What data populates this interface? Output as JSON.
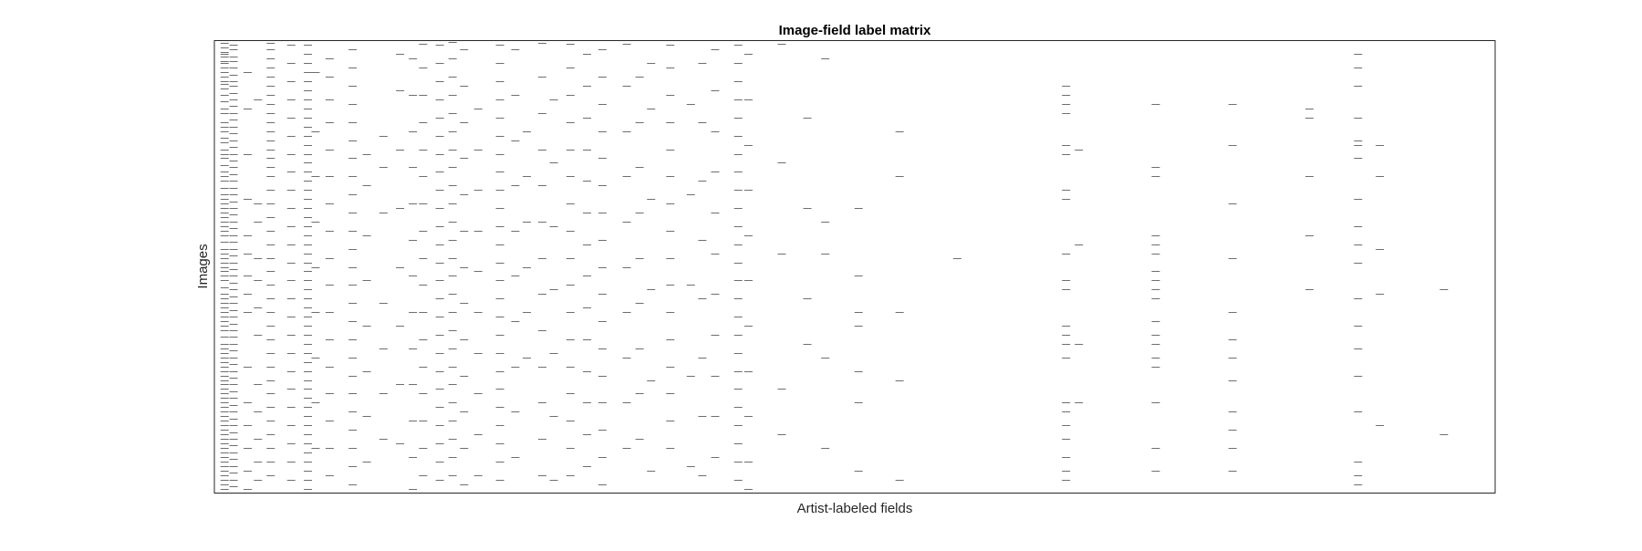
{
  "chart_data": {
    "type": "heatmap",
    "subtype": "binary-spy-matrix",
    "title": "Image-field label matrix",
    "xlabel": "Artist-labeled fields",
    "ylabel": "Images",
    "xlim": [
      0,
      100
    ],
    "ylim": [
      0,
      100
    ],
    "ticks_visible": false,
    "grid": false,
    "colors": {
      "mark": "#6e6e6e",
      "frame": "#262626",
      "background": "#ffffff"
    },
    "columns": [
      {
        "x": 0.8,
        "y": [
          0.5,
          1.5,
          2.5,
          3,
          3.5,
          4.5,
          5,
          6,
          7,
          8,
          9,
          9.5,
          10.5,
          12,
          13.5,
          15,
          16,
          18,
          19,
          20,
          21.5,
          22.5,
          24,
          25,
          26,
          27.5,
          29,
          30,
          31,
          32.5,
          34,
          35,
          36,
          37,
          38,
          39,
          40,
          41,
          42,
          43,
          44.5,
          46,
          47,
          48,
          49,
          50,
          51,
          52,
          53,
          54.5,
          56,
          57,
          58,
          59,
          60,
          61,
          62,
          63,
          64,
          65.5,
          67,
          68,
          69,
          70,
          71,
          72,
          73,
          74,
          75,
          76,
          77,
          78,
          79,
          80,
          81,
          82,
          83,
          84,
          85,
          86,
          87,
          88,
          89,
          90,
          91,
          92,
          93,
          94,
          95,
          96,
          97,
          98,
          99
        ]
      },
      {
        "x": 1.5,
        "y": [
          1,
          2,
          3.5,
          4.5,
          6,
          7.5,
          9,
          10,
          11.5,
          13,
          14.5,
          16,
          17.5,
          19,
          20.5,
          22,
          23.5,
          25,
          26.5,
          28,
          29.5,
          31,
          32.5,
          34,
          35.5,
          37,
          38.5,
          40,
          41.5,
          43,
          44.5,
          46,
          47.5,
          49,
          50.5,
          52,
          53.5,
          55,
          56.5,
          58,
          59.5,
          61,
          62.5,
          64,
          65.5,
          67,
          68.5,
          70,
          71.5,
          73,
          74.5,
          76,
          77.5,
          79,
          80.5,
          82,
          83.5,
          85,
          86.5,
          88,
          89.5,
          91,
          92.5,
          94,
          95.5,
          97,
          98.5
        ]
      },
      {
        "x": 2.6,
        "y": [
          7,
          15,
          25,
          35,
          43,
          47,
          52,
          56,
          60,
          72,
          80,
          85,
          90,
          95,
          99
        ]
      },
      {
        "x": 3.4,
        "y": [
          13,
          36,
          40,
          48,
          53,
          59,
          65,
          76,
          82,
          88,
          93,
          97
        ]
      },
      {
        "x": 4.4,
        "y": [
          0.5,
          2,
          4,
          6,
          8,
          10,
          12,
          14,
          16,
          18,
          20,
          22,
          24,
          26,
          28,
          30,
          33,
          36,
          39,
          42,
          45,
          48,
          51,
          54,
          57,
          60,
          63,
          66,
          69,
          72,
          75,
          78,
          81,
          84,
          87,
          90,
          93,
          96
        ]
      },
      {
        "x": 6.0,
        "y": [
          1,
          5,
          9,
          13,
          17,
          21,
          25,
          29,
          33,
          37,
          41,
          45,
          49,
          53,
          57,
          61,
          65,
          69,
          73,
          77,
          81,
          85,
          89,
          93,
          97
        ]
      },
      {
        "x": 7.3,
        "y": [
          1,
          3,
          5,
          7,
          9,
          11,
          13,
          15,
          17,
          19,
          21,
          23,
          25,
          27,
          29,
          31,
          33,
          35,
          37,
          39,
          41,
          43,
          45,
          47,
          49,
          51,
          53,
          55,
          57,
          59,
          61,
          63,
          65,
          67,
          69,
          71,
          73,
          75,
          77,
          79,
          81,
          83,
          85,
          87,
          89,
          91,
          93,
          95,
          97,
          99
        ]
      },
      {
        "x": 7.9,
        "y": [
          7,
          20,
          30,
          40,
          50,
          60,
          70,
          80,
          90
        ]
      },
      {
        "x": 9.0,
        "y": [
          4,
          8,
          13,
          18,
          24,
          30,
          36,
          42,
          48,
          54,
          60,
          66,
          72,
          78,
          84,
          90,
          96
        ]
      },
      {
        "x": 10.8,
        "y": [
          2,
          6,
          10,
          14,
          18,
          22,
          26,
          30,
          34,
          38,
          42,
          46,
          50,
          54,
          58,
          62,
          66,
          70,
          74,
          78,
          82,
          86,
          90,
          94,
          98
        ]
      },
      {
        "x": 11.9,
        "y": [
          25,
          32,
          43,
          53,
          63,
          73,
          83,
          93
        ]
      },
      {
        "x": 13.2,
        "y": [
          21,
          28,
          38,
          58,
          68,
          78,
          88
        ]
      },
      {
        "x": 14.5,
        "y": [
          3,
          11,
          24,
          37,
          50,
          63,
          76,
          89
        ]
      },
      {
        "x": 15.5,
        "y": [
          4,
          12,
          20,
          28,
          36,
          44,
          52,
          60,
          68,
          76,
          84,
          92,
          99
        ]
      },
      {
        "x": 16.3,
        "y": [
          0.7,
          6,
          12,
          18,
          24,
          30,
          36,
          42,
          48,
          54,
          60,
          66,
          72,
          78,
          84,
          90,
          96
        ]
      },
      {
        "x": 17.6,
        "y": [
          1,
          5,
          9,
          13,
          17,
          21,
          25,
          29,
          33,
          37,
          41,
          45,
          49,
          53,
          57,
          61,
          65,
          69,
          73,
          77,
          81,
          85,
          89,
          93,
          97
        ]
      },
      {
        "x": 18.6,
        "y": [
          0.3,
          4,
          8,
          12,
          16,
          20,
          24,
          28,
          32,
          36,
          40,
          44,
          48,
          52,
          56,
          60,
          64,
          68,
          72,
          76,
          80,
          84,
          88,
          92,
          96
        ]
      },
      {
        "x": 19.5,
        "y": [
          2,
          10,
          18,
          26,
          34,
          42,
          50,
          58,
          66,
          74,
          82,
          90,
          98
        ]
      },
      {
        "x": 20.6,
        "y": [
          15,
          24,
          33,
          42,
          51,
          60,
          69,
          78,
          87,
          96
        ]
      },
      {
        "x": 22.3,
        "y": [
          1,
          5,
          9,
          13,
          17,
          21,
          25,
          29,
          33,
          37,
          41,
          45,
          49,
          53,
          57,
          61,
          65,
          69,
          73,
          77,
          81,
          85,
          89,
          93,
          97
        ]
      },
      {
        "x": 23.5,
        "y": [
          2,
          12,
          22,
          32,
          42,
          52,
          62,
          72,
          82,
          92
        ]
      },
      {
        "x": 24.4,
        "y": [
          20,
          30,
          40,
          50,
          60,
          70
        ]
      },
      {
        "x": 25.6,
        "y": [
          0.5,
          8,
          16,
          24,
          32,
          40,
          48,
          56,
          64,
          72,
          80,
          88,
          96
        ]
      },
      {
        "x": 26.5,
        "y": [
          13,
          27,
          41,
          55,
          69,
          83,
          97
        ]
      },
      {
        "x": 27.8,
        "y": [
          0.8,
          6,
          12,
          18,
          24,
          30,
          36,
          42,
          48,
          54,
          60,
          66,
          72,
          78,
          84,
          90,
          96
        ]
      },
      {
        "x": 29.1,
        "y": [
          3,
          10,
          17,
          24,
          31,
          38,
          45,
          52,
          59,
          66,
          73,
          80,
          87,
          94
        ]
      },
      {
        "x": 30.3,
        "y": [
          2,
          8,
          14,
          20,
          26,
          32,
          38,
          44,
          50,
          56,
          62,
          68,
          74,
          80,
          86,
          92,
          98
        ]
      },
      {
        "x": 32.2,
        "y": [
          0.8,
          10,
          20,
          30,
          40,
          50,
          60,
          70,
          80,
          90
        ]
      },
      {
        "x": 33.2,
        "y": [
          8,
          18,
          28,
          38,
          48,
          58,
          68,
          78,
          88
        ]
      },
      {
        "x": 34.1,
        "y": [
          5,
          15,
          35,
          55,
          75,
          95
        ]
      },
      {
        "x": 35.6,
        "y": [
          1,
          6,
          12,
          18,
          24,
          30,
          36,
          42,
          48,
          54,
          60,
          66,
          72,
          78,
          84,
          90
        ]
      },
      {
        "x": 37.2,
        "y": [
          14,
          34,
          54,
          74,
          94
        ]
      },
      {
        "x": 38.1,
        "y": [
          5,
          18,
          31,
          44,
          57,
          70,
          83,
          96
        ]
      },
      {
        "x": 39.1,
        "y": [
          2,
          11,
          20,
          29,
          38,
          47,
          56,
          65,
          74,
          83,
          92
        ]
      },
      {
        "x": 40.9,
        "y": [
          1,
          5,
          9,
          13,
          17,
          21,
          25,
          29,
          33,
          37,
          41,
          45,
          49,
          53,
          57,
          61,
          65,
          69,
          73,
          77,
          81,
          85,
          89,
          93,
          97
        ]
      },
      {
        "x": 41.7,
        "y": [
          3,
          13,
          23,
          33,
          43,
          53,
          63,
          73,
          83,
          93,
          99
        ]
      },
      {
        "x": 44.3,
        "y": [
          0.8,
          27,
          47,
          77,
          87
        ]
      },
      {
        "x": 46.3,
        "y": [
          17,
          37,
          57,
          67
        ]
      },
      {
        "x": 47.7,
        "y": [
          4,
          40,
          47,
          70,
          90
        ]
      },
      {
        "x": 50.3,
        "y": [
          37,
          52,
          60,
          63,
          73,
          80,
          95
        ]
      },
      {
        "x": 53.5,
        "y": [
          20,
          30,
          60,
          75,
          97
        ]
      },
      {
        "x": 58.0,
        "y": [
          48
        ]
      },
      {
        "x": 66.5,
        "y": [
          10,
          12,
          14,
          16,
          23,
          25,
          33,
          35,
          47,
          53,
          55,
          63,
          65,
          67,
          70,
          80,
          82,
          85,
          88,
          92,
          95,
          97
        ]
      },
      {
        "x": 67.5,
        "y": [
          24,
          45,
          67,
          80
        ]
      },
      {
        "x": 73.5,
        "y": [
          14,
          28,
          30,
          43,
          45,
          47,
          51,
          53,
          55,
          57,
          62,
          65,
          67,
          70,
          72,
          80,
          90,
          95
        ]
      },
      {
        "x": 79.5,
        "y": [
          14,
          23,
          36,
          48,
          60,
          66,
          70,
          75,
          82,
          86,
          90,
          95
        ]
      },
      {
        "x": 85.5,
        "y": [
          15,
          17,
          30,
          43,
          55
        ]
      },
      {
        "x": 89.3,
        "y": [
          3,
          6,
          10,
          17,
          22,
          23,
          26,
          35,
          41,
          45,
          49,
          57,
          63,
          68,
          74,
          82,
          93,
          96,
          98
        ]
      },
      {
        "x": 91.0,
        "y": [
          23,
          30,
          46,
          56,
          85
        ]
      },
      {
        "x": 96.0,
        "y": [
          55,
          87
        ]
      }
    ]
  }
}
